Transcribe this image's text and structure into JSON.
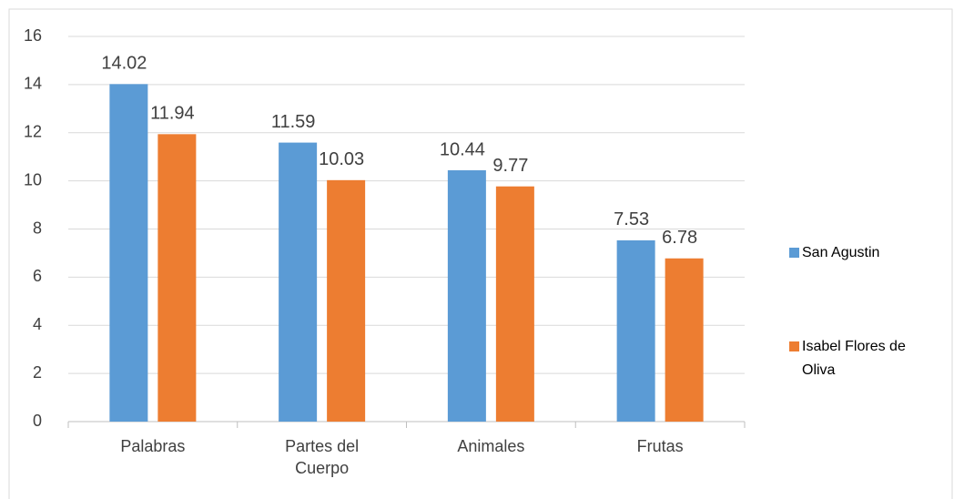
{
  "chart_data": {
    "type": "bar",
    "categories": [
      "Palabras",
      "Partes del Cuerpo",
      "Animales",
      "Frutas"
    ],
    "series": [
      {
        "name": "San Agustin",
        "color": "#5b9bd5",
        "values": [
          14.02,
          11.59,
          10.44,
          7.53
        ]
      },
      {
        "name": "Isabel Flores de Oliva",
        "color": "#ed7d31",
        "values": [
          11.94,
          10.03,
          9.77,
          6.78
        ]
      }
    ],
    "ylim": [
      0,
      16
    ],
    "yticks": [
      0,
      2,
      4,
      6,
      8,
      10,
      12,
      14,
      16
    ],
    "grid": true,
    "legend": "right"
  }
}
